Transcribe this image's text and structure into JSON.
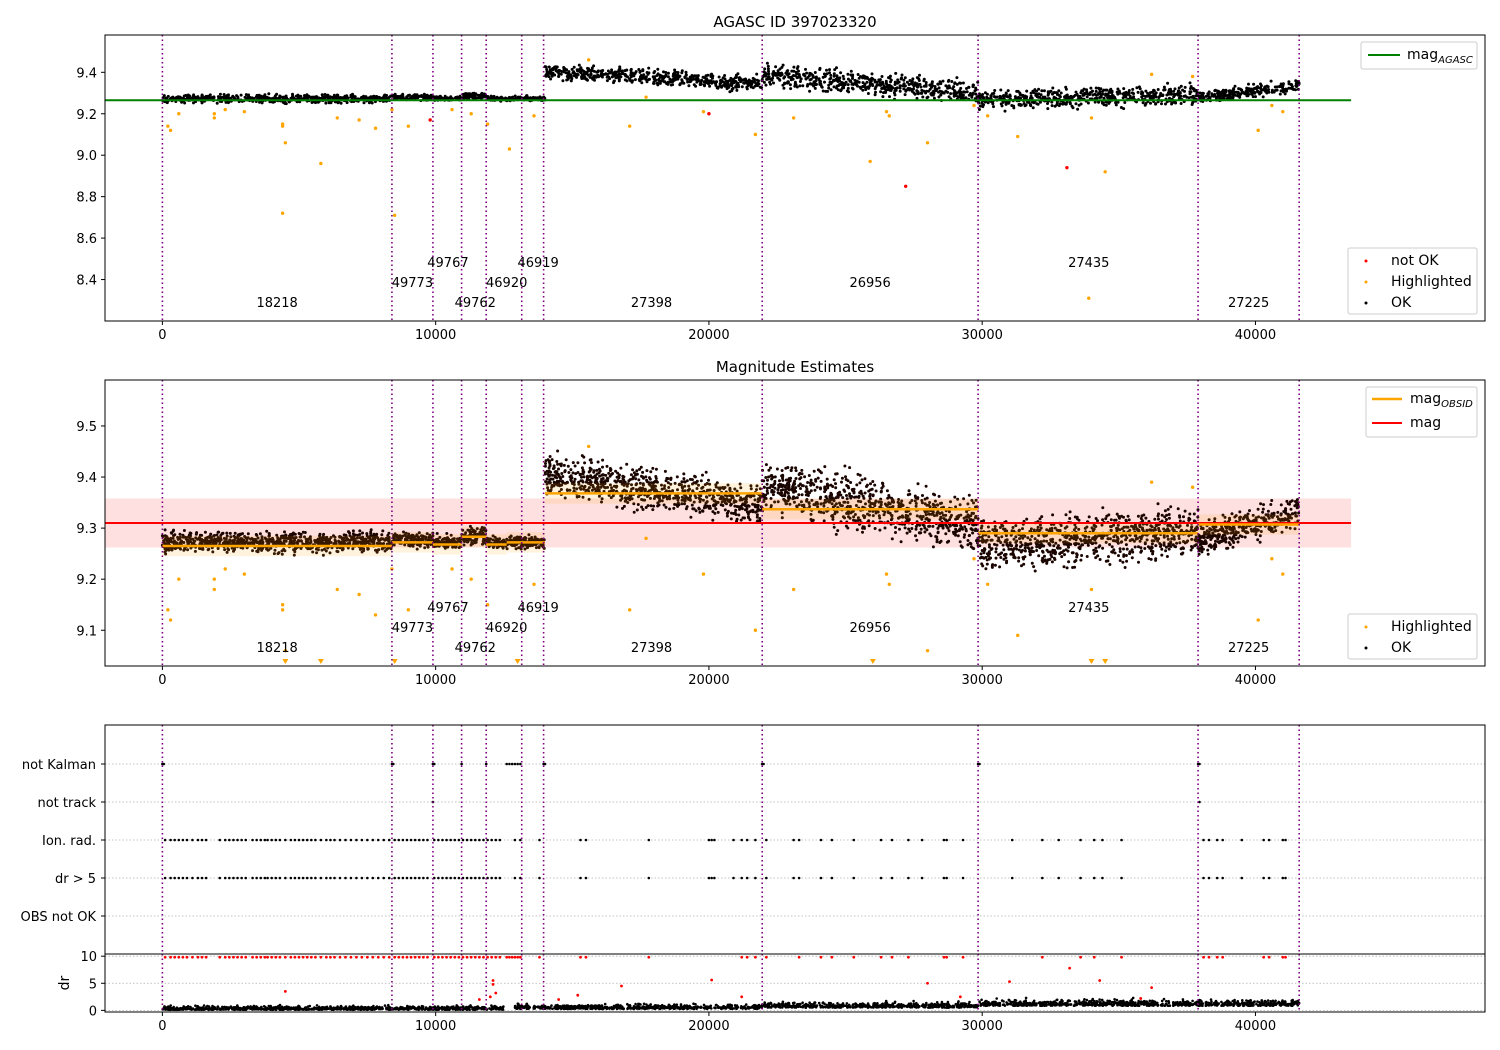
{
  "chart_data": [
    {
      "type": "scatter",
      "title": "AGASC ID 397023320",
      "xlim": [
        -2100,
        48400
      ],
      "ylim": [
        8.2,
        9.58
      ],
      "xticks": [
        "0",
        "10000",
        "20000",
        "30000",
        "40000"
      ],
      "xtick_values": [
        0,
        10000,
        20000,
        30000,
        40000
      ],
      "yticks": [
        "8.4",
        "8.6",
        "8.8",
        "9.0",
        "9.2",
        "9.4"
      ],
      "ytick_values": [
        8.4,
        8.6,
        8.8,
        9.0,
        9.2,
        9.4
      ],
      "grid": false,
      "legend_upper": {
        "location": "top-right",
        "entries": [
          {
            "label": "mag",
            "sub": "AGASC",
            "color": "#008000"
          }
        ]
      },
      "legend_lower": {
        "location": "bottom-right",
        "entries": [
          {
            "label": "not OK",
            "color": "#ff0000"
          },
          {
            "label": "Highlighted",
            "color": "#ffa500"
          },
          {
            "label": "OK",
            "color": "#000000"
          }
        ]
      },
      "mag_agasc": 9.265,
      "segments": [
        {
          "x0": 0,
          "x1": 8400,
          "level": 9.27,
          "lo": 9.245,
          "hi": 9.3
        },
        {
          "x0": 8400,
          "x1": 9900,
          "level": 9.275,
          "lo": 9.255,
          "hi": 9.3
        },
        {
          "x0": 9900,
          "x1": 10950,
          "level": 9.27,
          "lo": 9.255,
          "hi": 9.29
        },
        {
          "x0": 10950,
          "x1": 11850,
          "level": 9.28,
          "lo": 9.26,
          "hi": 9.31
        },
        {
          "x0": 11850,
          "x1": 12600,
          "level": 9.27,
          "lo": 9.255,
          "hi": 9.29
        },
        {
          "x0": 12600,
          "x1": 14000,
          "level": 9.27,
          "lo": 9.255,
          "hi": 9.29
        },
        {
          "x0": 14000,
          "x1": 21950,
          "level": 9.37,
          "lo": 9.32,
          "hi": 9.43,
          "slope": -0.06
        },
        {
          "x0": 21950,
          "x1": 29850,
          "level": 9.335,
          "lo": 9.27,
          "hi": 9.42,
          "slope": -0.08
        },
        {
          "x0": 29850,
          "x1": 37900,
          "level": 9.29,
          "lo": 9.21,
          "hi": 9.35,
          "slope": 0.03
        },
        {
          "x0": 37900,
          "x1": 41600,
          "level": 9.31,
          "lo": 9.26,
          "hi": 9.35,
          "slope": 0.06
        }
      ],
      "outliers_highlighted": [
        [
          200,
          9.14
        ],
        [
          300,
          9.12
        ],
        [
          600,
          9.2
        ],
        [
          1900,
          9.2
        ],
        [
          1900,
          9.18
        ],
        [
          2300,
          9.22
        ],
        [
          3000,
          9.21
        ],
        [
          4400,
          9.15
        ],
        [
          4400,
          9.14
        ],
        [
          4500,
          9.06
        ],
        [
          4400,
          8.72
        ],
        [
          5800,
          8.96
        ],
        [
          6400,
          9.18
        ],
        [
          7200,
          9.17
        ],
        [
          7800,
          9.13
        ],
        [
          8400,
          9.22
        ],
        [
          8500,
          8.71
        ],
        [
          9000,
          9.14
        ],
        [
          10600,
          9.22
        ],
        [
          11300,
          9.2
        ],
        [
          11900,
          9.15
        ],
        [
          12700,
          9.03
        ],
        [
          13600,
          9.19
        ],
        [
          15600,
          9.46
        ],
        [
          17100,
          9.14
        ],
        [
          17700,
          9.28
        ],
        [
          19800,
          9.21
        ],
        [
          21700,
          9.1
        ],
        [
          23100,
          9.18
        ],
        [
          25900,
          8.97
        ],
        [
          26500,
          9.21
        ],
        [
          26600,
          9.19
        ],
        [
          28000,
          9.06
        ],
        [
          29700,
          9.24
        ],
        [
          30200,
          9.19
        ],
        [
          31300,
          9.09
        ],
        [
          33900,
          8.31
        ],
        [
          34000,
          9.18
        ],
        [
          34500,
          8.92
        ],
        [
          36200,
          9.39
        ],
        [
          37700,
          9.38
        ],
        [
          40100,
          9.12
        ],
        [
          40600,
          9.24
        ],
        [
          41000,
          9.21
        ]
      ],
      "outliers_notok": [
        [
          9800,
          9.17
        ],
        [
          20000,
          9.2
        ],
        [
          27200,
          8.85
        ],
        [
          33100,
          8.94
        ]
      ],
      "obsid_labels": [
        {
          "x": 4200,
          "row": 0,
          "text": "18218"
        },
        {
          "x": 9150,
          "row": 1,
          "text": "49773"
        },
        {
          "x": 10450,
          "row": 2,
          "text": "49767"
        },
        {
          "x": 11450,
          "row": 0,
          "text": "49762"
        },
        {
          "x": 12600,
          "row": 1,
          "text": "46920"
        },
        {
          "x": 13750,
          "row": 2,
          "text": "46919"
        },
        {
          "x": 17900,
          "row": 0,
          "text": "27398"
        },
        {
          "x": 25900,
          "row": 1,
          "text": "26956"
        },
        {
          "x": 33900,
          "row": 2,
          "text": "27435"
        },
        {
          "x": 39750,
          "row": 0,
          "text": "27225"
        }
      ],
      "vlines": [
        0,
        8400,
        9900,
        10950,
        11850,
        13150,
        13950,
        21950,
        29850,
        37900,
        41600
      ]
    },
    {
      "type": "scatter",
      "title": "Magnitude Estimates",
      "xlim": [
        -2100,
        48400
      ],
      "ylim": [
        9.03,
        9.59
      ],
      "xticks": [
        "0",
        "10000",
        "20000",
        "30000",
        "40000"
      ],
      "xtick_values": [
        0,
        10000,
        20000,
        30000,
        40000
      ],
      "yticks": [
        "9.1",
        "9.2",
        "9.3",
        "9.4",
        "9.5"
      ],
      "ytick_values": [
        9.1,
        9.2,
        9.3,
        9.4,
        9.5
      ],
      "grid": false,
      "legend_upper": {
        "location": "top-right",
        "entries": [
          {
            "label": "mag",
            "sub": "OBSID",
            "color": "#ffa500"
          },
          {
            "label": "mag",
            "sub": "",
            "color": "#ff0000"
          }
        ]
      },
      "legend_lower": {
        "location": "bottom-right",
        "entries": [
          {
            "label": "Highlighted",
            "color": "#ffa500"
          },
          {
            "label": "OK",
            "color": "#000000"
          }
        ]
      },
      "mag": 9.31,
      "mag_band": [
        9.262,
        9.358
      ],
      "obsid_levels": [
        {
          "x0": 0,
          "x1": 8400,
          "mag": 9.265
        },
        {
          "x0": 8400,
          "x1": 9900,
          "mag": 9.272
        },
        {
          "x0": 9900,
          "x1": 10950,
          "mag": 9.268
        },
        {
          "x0": 10950,
          "x1": 11850,
          "mag": 9.283
        },
        {
          "x0": 11850,
          "x1": 12600,
          "mag": 9.268
        },
        {
          "x0": 12600,
          "x1": 14000,
          "mag": 9.272
        },
        {
          "x0": 14000,
          "x1": 21950,
          "mag": 9.368
        },
        {
          "x0": 21950,
          "x1": 29850,
          "mag": 9.337
        },
        {
          "x0": 29850,
          "x1": 37900,
          "mag": 9.29
        },
        {
          "x0": 37900,
          "x1": 41600,
          "mag": 9.307
        }
      ],
      "offscale_markers": [
        4500,
        5800,
        8500,
        13000,
        26000,
        34000,
        34500
      ],
      "obsid_labels": [
        {
          "x": 4200,
          "row": 0,
          "text": "18218"
        },
        {
          "x": 9150,
          "row": 1,
          "text": "49773"
        },
        {
          "x": 10450,
          "row": 2,
          "text": "49767"
        },
        {
          "x": 11450,
          "row": 0,
          "text": "49762"
        },
        {
          "x": 12600,
          "row": 1,
          "text": "46920"
        },
        {
          "x": 13750,
          "row": 2,
          "text": "46919"
        },
        {
          "x": 17900,
          "row": 0,
          "text": "27398"
        },
        {
          "x": 25900,
          "row": 1,
          "text": "26956"
        },
        {
          "x": 33900,
          "row": 2,
          "text": "27435"
        },
        {
          "x": 39750,
          "row": 0,
          "text": "27225"
        }
      ],
      "vlines": [
        0,
        8400,
        9900,
        10950,
        11850,
        13150,
        13950,
        21950,
        29850,
        37900,
        41600
      ]
    },
    {
      "type": "scatter",
      "title": "",
      "xlim": [
        -2100,
        48400
      ],
      "flag_rows": [
        "not Kalman",
        "not track",
        "Ion. rad.",
        "dr > 5",
        "OBS not OK"
      ],
      "flag_grid": true,
      "flags": {
        "not Kalman": [
          0,
          50,
          8400,
          8450,
          9900,
          9950,
          10950,
          11850,
          12600,
          12700,
          12800,
          12900,
          13000,
          13100,
          13950,
          14000,
          21950,
          22000,
          29850,
          29900,
          37900,
          37950
        ],
        "not track": [
          9900,
          37950
        ],
        "Ion. rad.": [
          100,
          300,
          450,
          600,
          750,
          900,
          1100,
          1300,
          1450,
          1600,
          2100,
          2300,
          2450,
          2600,
          2750,
          2900,
          3050,
          3300,
          3450,
          3600,
          3750,
          3850,
          4000,
          4150,
          4300,
          4500,
          4700,
          4850,
          5000,
          5150,
          5300,
          5450,
          5600,
          5800,
          6000,
          6150,
          6300,
          6500,
          6700,
          6900,
          7100,
          7300,
          7500,
          7700,
          7900,
          8100,
          8300,
          8500,
          8650,
          8800,
          8950,
          9100,
          9250,
          9400,
          9550,
          9700,
          9950,
          10100,
          10250,
          10400,
          10550,
          10700,
          10850,
          11000,
          11150,
          11300,
          11450,
          11600,
          11750,
          11900,
          12050,
          12200,
          12350,
          12900,
          13100,
          13800,
          15300,
          15500,
          17800,
          20000,
          20100,
          20200,
          20900,
          21200,
          21400,
          21700,
          22100,
          23100,
          23300,
          24100,
          24500,
          25300,
          26300,
          26700,
          27300,
          27800,
          28600,
          28700,
          29300,
          31100,
          32200,
          32800,
          33600,
          34100,
          34400,
          35100,
          38100,
          38300,
          38600,
          38800,
          39500,
          40300,
          40500,
          41000,
          41100
        ],
        "dr > 5": [
          100,
          300,
          450,
          600,
          750,
          900,
          1100,
          1300,
          1450,
          1600,
          2100,
          2300,
          2450,
          2600,
          2750,
          2900,
          3050,
          3300,
          3450,
          3600,
          3750,
          3850,
          4000,
          4150,
          4300,
          4500,
          4700,
          4850,
          5000,
          5150,
          5300,
          5450,
          5600,
          5800,
          6000,
          6150,
          6300,
          6500,
          6700,
          6900,
          7100,
          7300,
          7500,
          7700,
          7900,
          8100,
          8300,
          8500,
          8650,
          8800,
          8950,
          9100,
          9250,
          9400,
          9550,
          9700,
          9950,
          10100,
          10250,
          10400,
          10550,
          10700,
          10850,
          11000,
          11150,
          11300,
          11450,
          11600,
          11750,
          11900,
          12050,
          12200,
          12350,
          12900,
          13100,
          13800,
          15300,
          15500,
          17800,
          20000,
          20100,
          20200,
          20900,
          21200,
          21400,
          21700,
          22100,
          23100,
          23300,
          24100,
          24500,
          25300,
          26300,
          26700,
          27300,
          27800,
          28600,
          28700,
          29300,
          31100,
          32200,
          32800,
          33600,
          34100,
          34400,
          35100,
          38100,
          38300,
          38600,
          38800,
          39500,
          40300,
          40500,
          41000,
          41100
        ],
        "OBS not OK": []
      },
      "vlines": [
        0,
        8400,
        9900,
        10950,
        11850,
        13150,
        13950,
        21950,
        29850,
        37900,
        41600
      ]
    },
    {
      "type": "scatter",
      "title": "",
      "xlim": [
        -2100,
        48400
      ],
      "ylim": [
        -0.3,
        10.4
      ],
      "ylabel": "dr",
      "xticks": [
        "0",
        "10000",
        "20000",
        "30000",
        "40000"
      ],
      "xtick_values": [
        0,
        10000,
        20000,
        30000,
        40000
      ],
      "yticks": [
        "0",
        "5",
        "10"
      ],
      "ytick_values": [
        0,
        5,
        10
      ],
      "grid": true,
      "dr_saturated_red": [
        100,
        300,
        450,
        600,
        750,
        900,
        1100,
        1300,
        1450,
        1600,
        2100,
        2300,
        2450,
        2600,
        2750,
        2900,
        3050,
        3300,
        3450,
        3600,
        3750,
        3850,
        4000,
        4150,
        4300,
        4500,
        4700,
        4850,
        5000,
        5150,
        5300,
        5450,
        5600,
        5800,
        6000,
        6150,
        6300,
        6500,
        6700,
        6900,
        7100,
        7300,
        7500,
        7700,
        7900,
        8100,
        8300,
        8500,
        8650,
        8800,
        8950,
        9100,
        9250,
        9400,
        9550,
        9700,
        9950,
        10100,
        10250,
        10400,
        10550,
        10700,
        10850,
        11000,
        11150,
        11300,
        11450,
        11600,
        11750,
        11900,
        12050,
        12200,
        12350,
        12600,
        12700,
        12800,
        12900,
        13000,
        13100,
        13800,
        15300,
        15500,
        17800,
        21200,
        21400,
        21700,
        22100,
        23300,
        24100,
        24500,
        25300,
        26300,
        26700,
        27300,
        28600,
        28700,
        29300,
        32200,
        33600,
        34100,
        35100,
        38100,
        38300,
        38600,
        38800,
        40300,
        40500,
        41000,
        41100
      ],
      "dr_mid_red": [
        [
          4500,
          3.5
        ],
        [
          11600,
          2.0
        ],
        [
          12000,
          2.5
        ],
        [
          12100,
          5.5
        ],
        [
          12100,
          4.8
        ],
        [
          12200,
          3.2
        ],
        [
          14500,
          2.0
        ],
        [
          15200,
          2.8
        ],
        [
          16800,
          4.5
        ],
        [
          20100,
          5.6
        ],
        [
          21200,
          2.5
        ],
        [
          28000,
          5.0
        ],
        [
          29200,
          2.5
        ],
        [
          31000,
          5.3
        ],
        [
          33200,
          7.8
        ],
        [
          34300,
          5.5
        ],
        [
          35800,
          2.2
        ],
        [
          36200,
          4.2
        ]
      ],
      "dr_segments": [
        {
          "x0": 0,
          "x1": 12500,
          "level": 0.4,
          "spread": 1.0
        },
        {
          "x0": 12900,
          "x1": 21950,
          "level": 0.6,
          "spread": 1.1
        },
        {
          "x0": 21950,
          "x1": 29850,
          "level": 0.9,
          "spread": 1.3
        },
        {
          "x0": 29850,
          "x1": 41600,
          "level": 1.3,
          "spread": 1.5
        }
      ],
      "vlines": [
        0,
        8400,
        9900,
        10950,
        11850,
        13150,
        13950,
        21950,
        29850,
        37900,
        41600
      ]
    }
  ]
}
